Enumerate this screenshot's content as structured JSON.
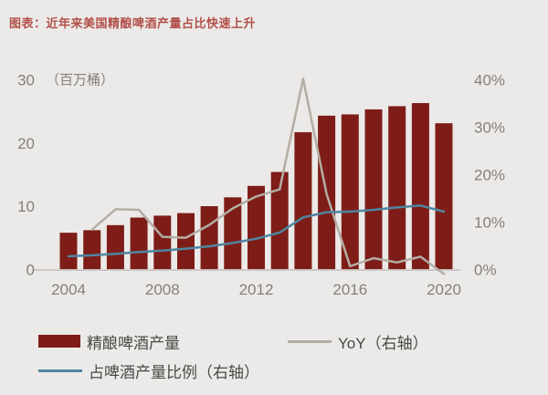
{
  "title": "图表：近年来美国精酿啤酒产量占比快速上升",
  "colors": {
    "background": "#eceae8",
    "title": "#b2504a",
    "axis_text": "#84807c",
    "legend_text": "#4b4946",
    "axis_line": "#cbc8c5"
  },
  "chart_data": {
    "type": "bar",
    "title": "近年来美国精酿啤酒产量占比快速上升",
    "categories": [
      2004,
      2005,
      2006,
      2007,
      2008,
      2009,
      2010,
      2011,
      2012,
      2013,
      2014,
      2015,
      2016,
      2017,
      2018,
      2019,
      2020
    ],
    "x_tick_labels": [
      "2004",
      "2008",
      "2012",
      "2016",
      "2020"
    ],
    "left_axis": {
      "label": "（百万桶）",
      "ticks": [
        0,
        10,
        20,
        30
      ],
      "range": [
        0,
        30
      ]
    },
    "right_axis": {
      "ticks": [
        "0%",
        "10%",
        "20%",
        "30%",
        "40%"
      ],
      "range": [
        0,
        40
      ]
    },
    "grid": false,
    "legend_position": "bottom",
    "series": [
      {
        "name": "精酿啤酒产量",
        "type": "bar",
        "axis": "left",
        "unit": "百万桶",
        "color": "#7e1d17",
        "values": [
          5.9,
          6.3,
          7.1,
          8.3,
          8.6,
          9.0,
          10.1,
          11.5,
          13.3,
          15.5,
          21.8,
          24.4,
          24.6,
          25.4,
          25.9,
          26.4,
          23.2
        ]
      },
      {
        "name": "YoY（右轴）",
        "type": "line",
        "axis": "right",
        "unit": "%",
        "color": "#b4ada4",
        "values": [
          null,
          8.5,
          12.8,
          12.7,
          7.0,
          6.8,
          9.5,
          13.0,
          15.5,
          17.0,
          40.3,
          16.0,
          0.8,
          2.5,
          1.6,
          2.8,
          -0.8
        ]
      },
      {
        "name": "占啤酒产量比例（右轴）",
        "type": "line",
        "axis": "right",
        "unit": "%",
        "color": "#4e86a2",
        "values": [
          2.9,
          3.1,
          3.4,
          3.8,
          4.1,
          4.5,
          5.0,
          5.7,
          6.6,
          7.9,
          11.1,
          12.2,
          12.3,
          12.7,
          13.2,
          13.6,
          12.3
        ]
      }
    ]
  }
}
